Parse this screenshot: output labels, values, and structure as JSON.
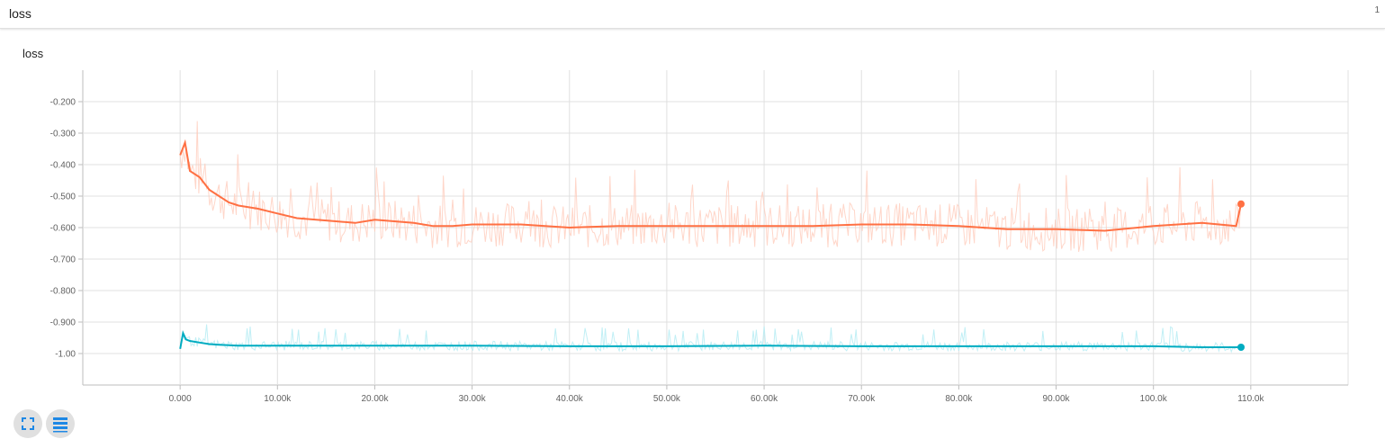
{
  "header": {
    "title": "loss",
    "count": "1"
  },
  "toolbar": {
    "expand_icon": "fullscreen-icon",
    "data_icon": "list-icon"
  },
  "chart_data": {
    "type": "line",
    "title": "loss",
    "xlabel": "",
    "ylabel": "",
    "xlim": [
      -10000,
      120000
    ],
    "ylim": [
      -1.1,
      -0.1
    ],
    "x_ticks": [
      0,
      10000,
      20000,
      30000,
      40000,
      50000,
      60000,
      70000,
      80000,
      90000,
      100000,
      110000
    ],
    "x_tick_labels": [
      "0.000",
      "10.00k",
      "20.00k",
      "30.00k",
      "40.00k",
      "50.00k",
      "60.00k",
      "70.00k",
      "80.00k",
      "90.00k",
      "100.0k",
      "110.0k"
    ],
    "y_ticks": [
      -0.2,
      -0.3,
      -0.4,
      -0.5,
      -0.6,
      -0.7,
      -0.8,
      -0.9,
      -1.0
    ],
    "y_tick_labels": [
      "-0.200",
      "-0.300",
      "-0.400",
      "-0.500",
      "-0.600",
      "-0.700",
      "-0.800",
      "-0.900",
      "-1.00"
    ],
    "grid": true,
    "series": [
      {
        "color": "#ff7043",
        "raw_color": "#ffccbc",
        "x": [
          0,
          500,
          1000,
          2000,
          3000,
          4000,
          5000,
          6000,
          8000,
          10000,
          12000,
          14000,
          16000,
          18000,
          20000,
          22000,
          24000,
          26000,
          28000,
          30000,
          35000,
          40000,
          45000,
          50000,
          55000,
          60000,
          65000,
          70000,
          75000,
          80000,
          85000,
          90000,
          95000,
          100000,
          105000,
          108500,
          109000
        ],
        "values": [
          -0.37,
          -0.33,
          -0.42,
          -0.44,
          -0.48,
          -0.5,
          -0.52,
          -0.53,
          -0.54,
          -0.555,
          -0.57,
          -0.575,
          -0.58,
          -0.585,
          -0.575,
          -0.58,
          -0.585,
          -0.595,
          -0.595,
          -0.59,
          -0.59,
          -0.6,
          -0.595,
          -0.595,
          -0.595,
          -0.595,
          -0.595,
          -0.59,
          -0.59,
          -0.595,
          -0.605,
          -0.605,
          -0.61,
          -0.595,
          -0.585,
          -0.595,
          -0.525
        ]
      },
      {
        "color": "#00acc1",
        "raw_color": "#b2ebf2",
        "x": [
          0,
          300,
          600,
          1000,
          2000,
          3000,
          4000,
          6000,
          10000,
          20000,
          30000,
          40000,
          50000,
          60000,
          70000,
          80000,
          90000,
          100000,
          105000,
          109000
        ],
        "values": [
          -0.985,
          -0.935,
          -0.955,
          -0.96,
          -0.965,
          -0.97,
          -0.972,
          -0.975,
          -0.975,
          -0.975,
          -0.975,
          -0.977,
          -0.977,
          -0.975,
          -0.977,
          -0.977,
          -0.977,
          -0.977,
          -0.98,
          -0.98
        ]
      }
    ]
  }
}
